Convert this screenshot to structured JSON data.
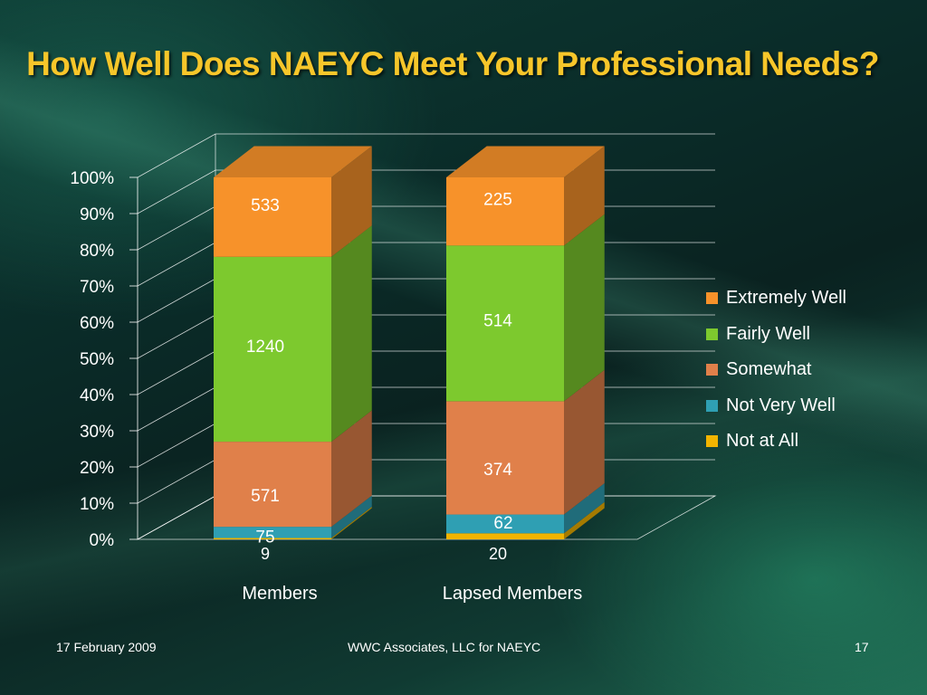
{
  "slide": {
    "title": "How Well Does NAEYC Meet Your Professional Needs?",
    "footer_date": "17 February 2009",
    "footer_center": "WWC Associates, LLC for NAEYC",
    "page_number": "17"
  },
  "chart_data": {
    "type": "bar",
    "stacked": "percent",
    "style": "3d",
    "categories": [
      "Members",
      "Lapsed Members"
    ],
    "ylim": [
      0,
      100
    ],
    "yticks": [
      "0%",
      "10%",
      "20%",
      "30%",
      "40%",
      "50%",
      "60%",
      "70%",
      "80%",
      "90%",
      "100%"
    ],
    "grid": true,
    "legend_position": "right",
    "series": [
      {
        "name": "Not at All",
        "values": [
          9,
          20
        ],
        "color": "#f2b400"
      },
      {
        "name": "Not Very Well",
        "values": [
          75,
          62
        ],
        "color": "#2f9fb3"
      },
      {
        "name": "Somewhat",
        "values": [
          571,
          374
        ],
        "color": "#e0804a"
      },
      {
        "name": "Fairly Well",
        "values": [
          1240,
          514
        ],
        "color": "#7dc92e"
      },
      {
        "name": "Extremely Well",
        "values": [
          533,
          225
        ],
        "color": "#f7922a"
      }
    ],
    "legend_order": [
      "Extremely Well",
      "Fairly Well",
      "Somewhat",
      "Not Very Well",
      "Not at All"
    ]
  }
}
